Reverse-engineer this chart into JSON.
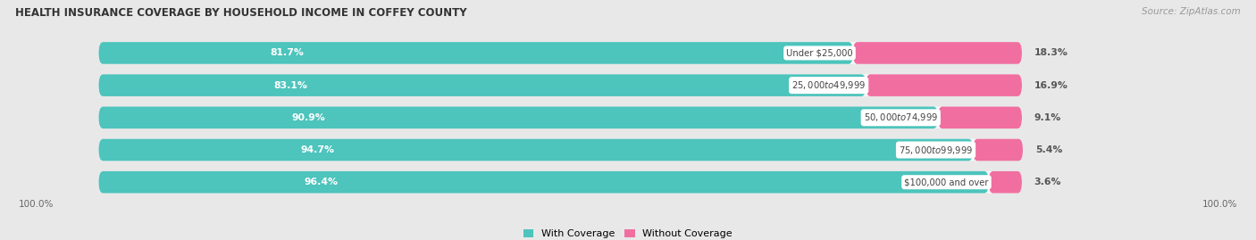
{
  "title": "HEALTH INSURANCE COVERAGE BY HOUSEHOLD INCOME IN COFFEY COUNTY",
  "source": "Source: ZipAtlas.com",
  "categories": [
    "Under $25,000",
    "$25,000 to $49,999",
    "$50,000 to $74,999",
    "$75,000 to $99,999",
    "$100,000 and over"
  ],
  "with_coverage": [
    81.7,
    83.1,
    90.9,
    94.7,
    96.4
  ],
  "without_coverage": [
    18.3,
    16.9,
    9.1,
    5.4,
    3.6
  ],
  "color_with": "#4DC4BC",
  "color_without": "#F06FA0",
  "bar_height": 0.68,
  "background_color": "#e8e8e8",
  "bar_background": "#f8f8f8",
  "row_background": "#e8e8e8",
  "legend_with": "With Coverage",
  "legend_without": "Without Coverage",
  "x_axis_label_left": "100.0%",
  "x_axis_label_right": "100.0%",
  "total_width": 100
}
